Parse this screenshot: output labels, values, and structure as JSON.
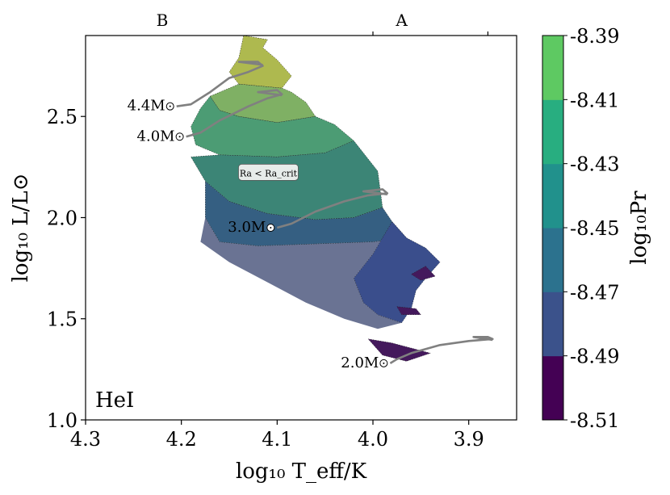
{
  "chart_data": {
    "type": "contour",
    "panel_label": "HeI",
    "xlabel": "log₁₀ T_eff/K",
    "ylabel": "log₁₀ L/L⊙",
    "xlim": [
      4.3,
      3.85
    ],
    "ylim": [
      1.0,
      2.9
    ],
    "x_ticks": [
      4.3,
      4.2,
      4.1,
      4.0,
      3.9
    ],
    "x_tick_labels": [
      "4.3",
      "4.2",
      "4.1",
      "4.0",
      "3.9"
    ],
    "y_ticks": [
      1.0,
      1.5,
      2.0,
      2.5
    ],
    "y_tick_labels": [
      "1.0",
      "1.5",
      "2.0",
      "2.5"
    ],
    "top_axis": {
      "labels": [
        "B",
        "A"
      ],
      "label_positions": [
        4.22,
        3.97
      ],
      "tick_positions": [
        4.0,
        3.88
      ]
    },
    "colorbar": {
      "label": "log₁₀Pr",
      "levels": [
        -8.51,
        -8.49,
        -8.47,
        -8.45,
        -8.43,
        -8.41,
        -8.39
      ],
      "tick_labels": [
        "-8.51",
        "-8.49",
        "-8.47",
        "-8.45",
        "-8.43",
        "-8.41",
        "-8.39"
      ],
      "colors": [
        "#440154",
        "#3b528b",
        "#2c728e",
        "#21918c",
        "#28ae80",
        "#5ec962",
        "#b5de2b"
      ]
    },
    "subcritical_region": {
      "label": "Ra < Ra_crit",
      "color": "#6a7393"
    },
    "tracks": [
      {
        "label": "4.4M⊙",
        "mass": 4.4,
        "color": "#808080",
        "points": [
          [
            4.205,
            2.55
          ],
          [
            4.19,
            2.56
          ],
          [
            4.17,
            2.62
          ],
          [
            4.15,
            2.69
          ],
          [
            4.13,
            2.72
          ],
          [
            4.115,
            2.75
          ],
          [
            4.12,
            2.77
          ],
          [
            4.14,
            2.77
          ],
          [
            4.115,
            2.755
          ]
        ]
      },
      {
        "label": "4.0M⊙",
        "mass": 4.0,
        "color": "#808080",
        "points": [
          [
            4.195,
            2.4
          ],
          [
            4.18,
            2.42
          ],
          [
            4.16,
            2.48
          ],
          [
            4.13,
            2.55
          ],
          [
            4.11,
            2.59
          ],
          [
            4.095,
            2.61
          ],
          [
            4.1,
            2.63
          ],
          [
            4.12,
            2.62
          ],
          [
            4.095,
            2.605
          ]
        ]
      },
      {
        "label": "3.0M⊙",
        "mass": 3.0,
        "color": "#808080",
        "points": [
          [
            4.1,
            1.95
          ],
          [
            4.085,
            1.97
          ],
          [
            4.06,
            2.03
          ],
          [
            4.03,
            2.08
          ],
          [
            4.005,
            2.11
          ],
          [
            3.985,
            2.12
          ],
          [
            3.99,
            2.14
          ],
          [
            4.01,
            2.13
          ],
          [
            3.985,
            2.115
          ]
        ]
      },
      {
        "label": "2.0M⊙",
        "mass": 2.0,
        "color": "#808080",
        "points": [
          [
            3.982,
            1.28
          ],
          [
            3.975,
            1.3
          ],
          [
            3.96,
            1.33
          ],
          [
            3.93,
            1.37
          ],
          [
            3.9,
            1.39
          ],
          [
            3.875,
            1.4
          ],
          [
            3.88,
            1.41
          ],
          [
            3.895,
            1.41
          ],
          [
            3.875,
            1.395
          ]
        ]
      }
    ],
    "regions": [
      {
        "level": -8.39,
        "color": "#aeb94f",
        "points": [
          [
            4.135,
            2.9
          ],
          [
            4.11,
            2.88
          ],
          [
            4.115,
            2.84
          ],
          [
            4.1,
            2.78
          ],
          [
            4.085,
            2.7
          ],
          [
            4.095,
            2.64
          ],
          [
            4.14,
            2.66
          ],
          [
            4.15,
            2.72
          ],
          [
            4.14,
            2.79
          ]
        ]
      },
      {
        "level": -8.41,
        "color": "#7fb064",
        "points": [
          [
            4.14,
            2.66
          ],
          [
            4.095,
            2.64
          ],
          [
            4.085,
            2.62
          ],
          [
            4.07,
            2.57
          ],
          [
            4.06,
            2.5
          ],
          [
            4.1,
            2.47
          ],
          [
            4.14,
            2.5
          ],
          [
            4.16,
            2.53
          ],
          [
            4.17,
            2.6
          ]
        ]
      },
      {
        "level": -8.43,
        "color": "#4c9c74",
        "points": [
          [
            4.17,
            2.6
          ],
          [
            4.16,
            2.53
          ],
          [
            4.14,
            2.5
          ],
          [
            4.1,
            2.47
          ],
          [
            4.06,
            2.5
          ],
          [
            4.04,
            2.46
          ],
          [
            4.02,
            2.38
          ],
          [
            4.05,
            2.32
          ],
          [
            4.1,
            2.3
          ],
          [
            4.16,
            2.31
          ],
          [
            4.185,
            2.36
          ],
          [
            4.19,
            2.45
          ],
          [
            4.18,
            2.54
          ]
        ]
      },
      {
        "level": -8.45,
        "color": "#3c8576",
        "points": [
          [
            4.19,
            2.3
          ],
          [
            4.16,
            2.31
          ],
          [
            4.1,
            2.3
          ],
          [
            4.05,
            2.32
          ],
          [
            4.02,
            2.38
          ],
          [
            3.995,
            2.23
          ],
          [
            3.99,
            2.05
          ],
          [
            4.02,
            2.0
          ],
          [
            4.06,
            1.99
          ],
          [
            4.11,
            2.02
          ],
          [
            4.15,
            2.08
          ],
          [
            4.175,
            2.18
          ]
        ]
      },
      {
        "level": -8.47,
        "color": "#355f82",
        "points": [
          [
            4.175,
            2.18
          ],
          [
            4.15,
            2.08
          ],
          [
            4.11,
            2.02
          ],
          [
            4.06,
            1.99
          ],
          [
            4.02,
            2.0
          ],
          [
            3.99,
            2.05
          ],
          [
            3.98,
            1.98
          ],
          [
            3.965,
            1.9
          ],
          [
            4.0,
            1.88
          ],
          [
            4.06,
            1.87
          ],
          [
            4.12,
            1.86
          ],
          [
            4.16,
            1.88
          ],
          [
            4.175,
            2.0
          ]
        ]
      },
      {
        "level": -8.49,
        "color": "#3a4e8c",
        "points": [
          [
            3.98,
            1.98
          ],
          [
            3.965,
            1.9
          ],
          [
            3.945,
            1.85
          ],
          [
            3.93,
            1.78
          ],
          [
            3.945,
            1.7
          ],
          [
            3.955,
            1.64
          ],
          [
            3.96,
            1.55
          ],
          [
            3.97,
            1.48
          ],
          [
            3.995,
            1.52
          ],
          [
            4.01,
            1.58
          ],
          [
            4.02,
            1.7
          ],
          [
            4.0,
            1.82
          ]
        ]
      },
      {
        "level": -8.51,
        "color": "#44195c",
        "points": [
          [
            3.945,
            1.76
          ],
          [
            3.935,
            1.71
          ],
          [
            3.95,
            1.69
          ],
          [
            3.96,
            1.72
          ]
        ]
      },
      {
        "level": -8.51,
        "color": "#44195c",
        "points": [
          [
            3.975,
            1.56
          ],
          [
            3.955,
            1.55
          ],
          [
            3.95,
            1.52
          ],
          [
            3.97,
            1.52
          ]
        ]
      },
      {
        "level": -8.51,
        "color": "#44195c",
        "points": [
          [
            4.005,
            1.4
          ],
          [
            3.98,
            1.38
          ],
          [
            3.94,
            1.33
          ],
          [
            3.965,
            1.29
          ],
          [
            3.99,
            1.32
          ]
        ]
      }
    ]
  }
}
